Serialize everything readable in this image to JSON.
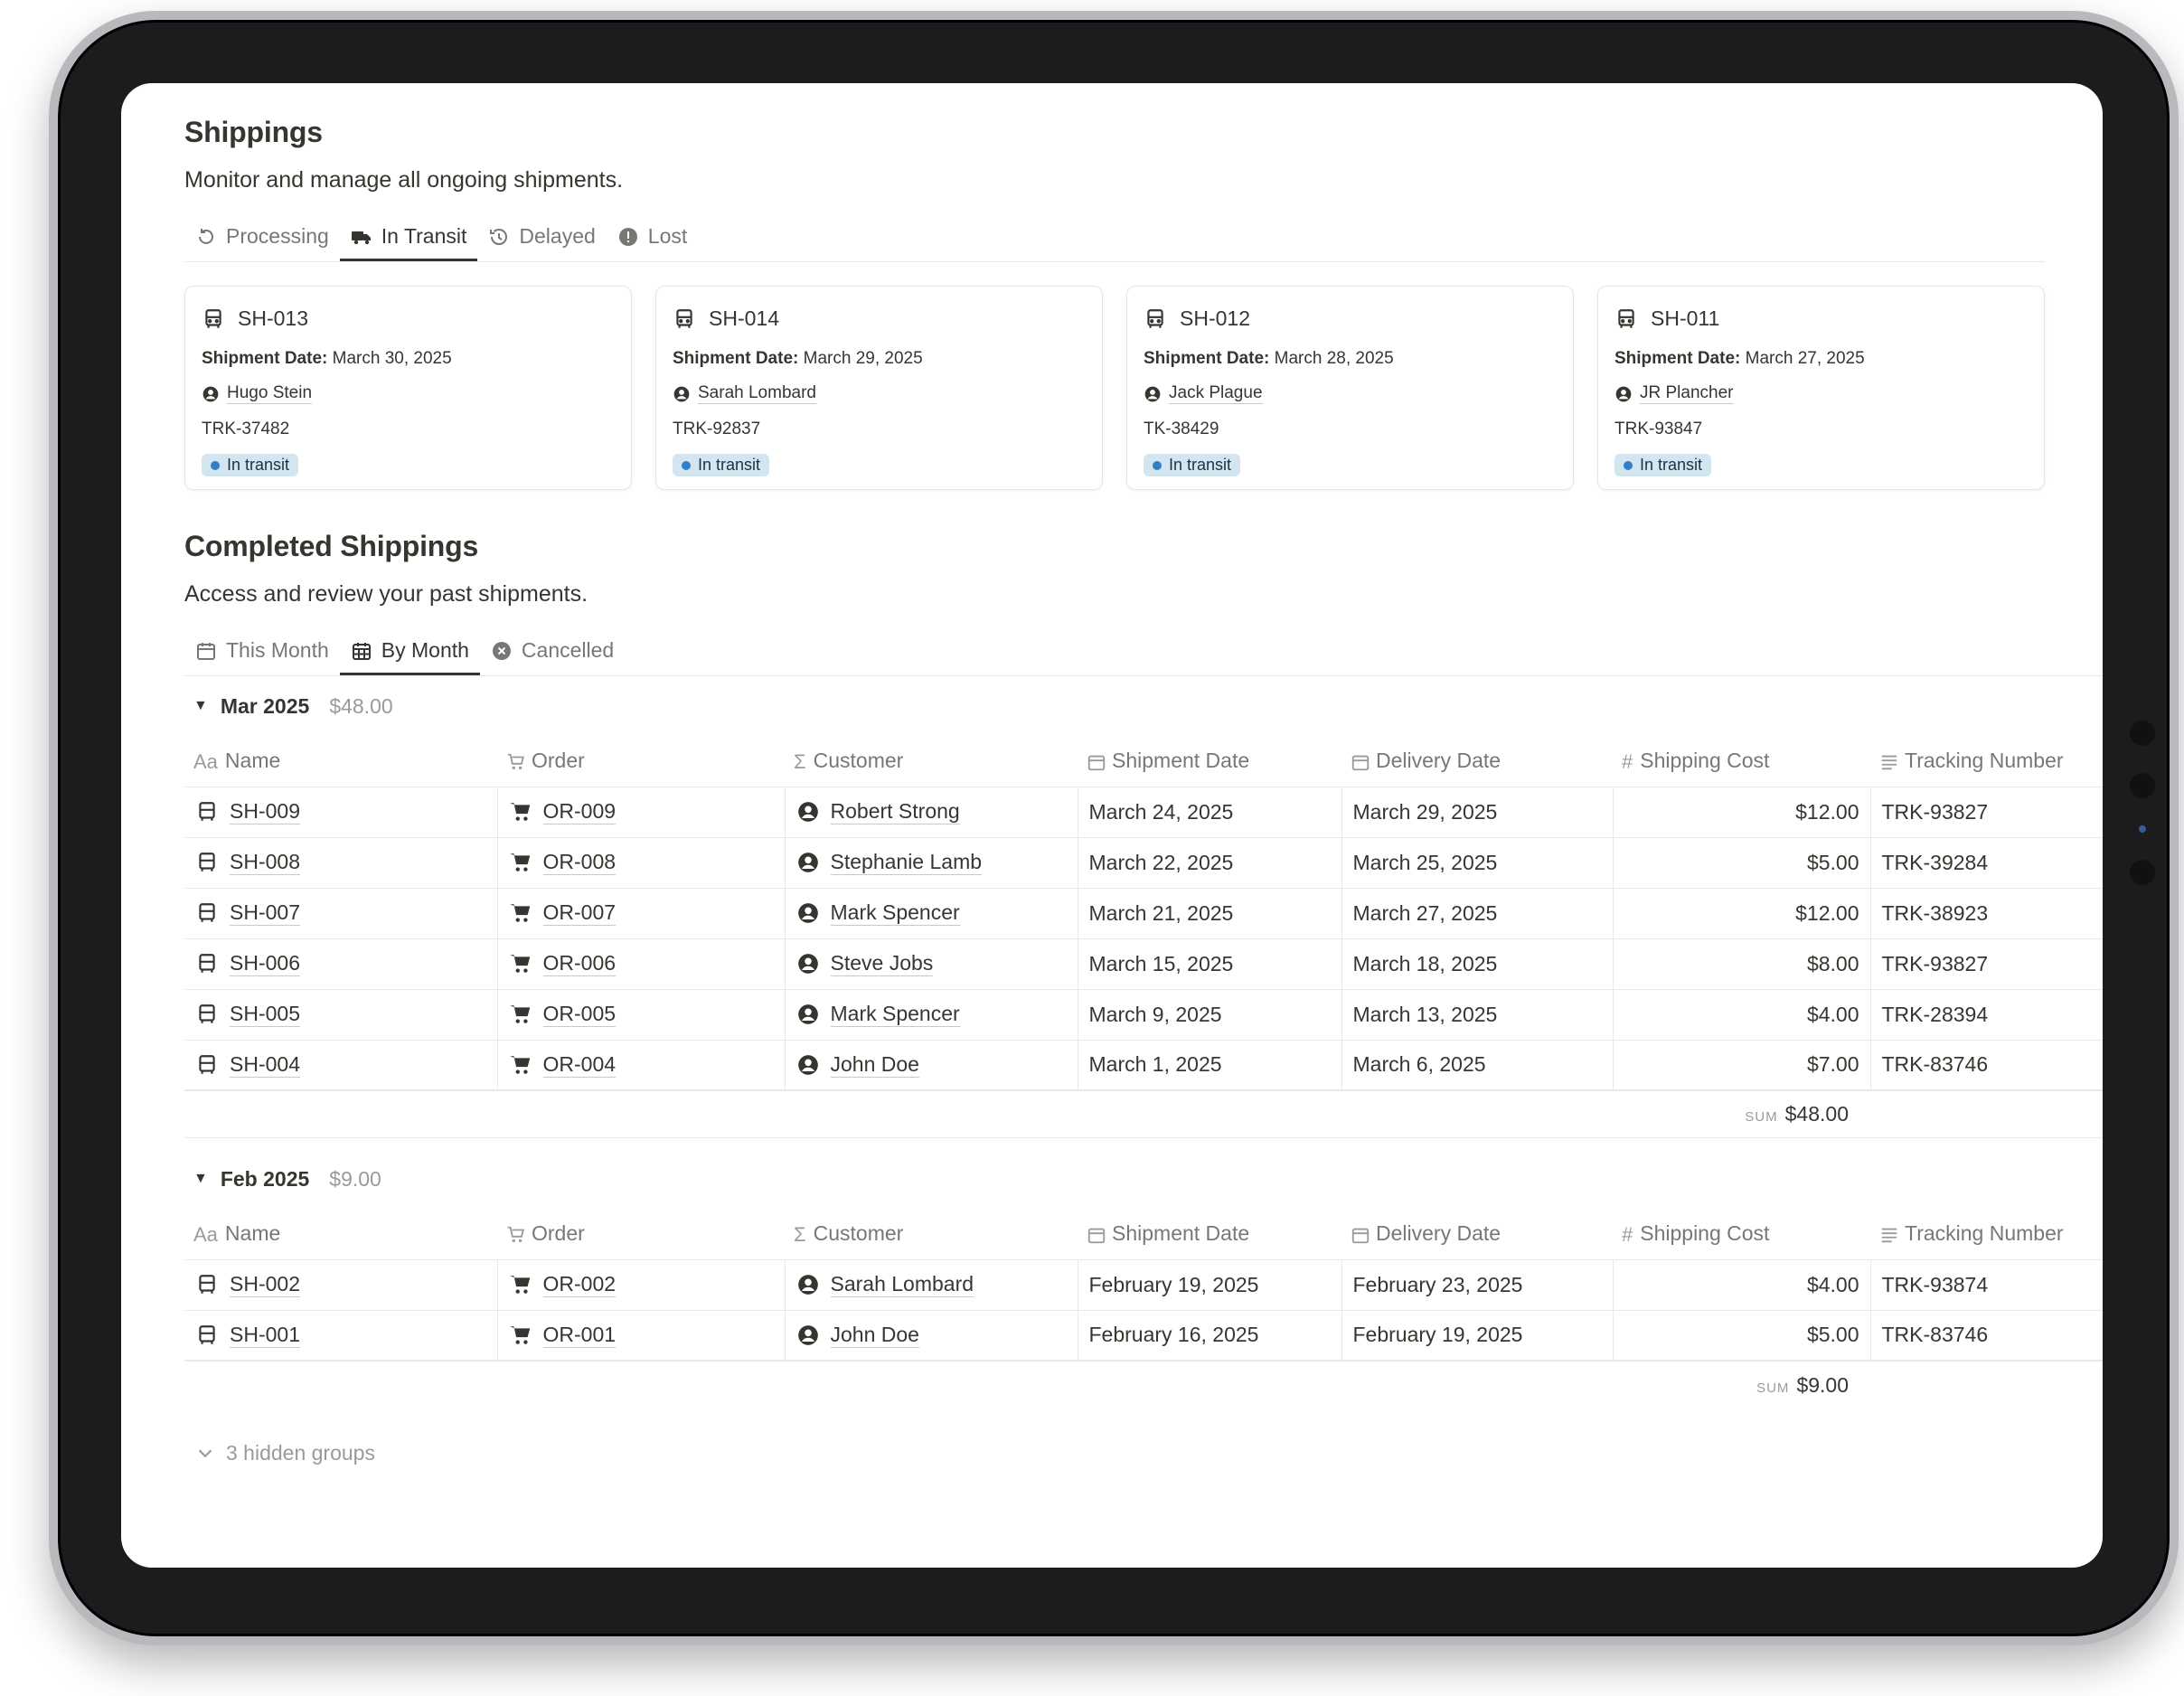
{
  "shippings": {
    "title": "Shippings",
    "description": "Monitor and manage all ongoing shipments.",
    "tabs": [
      {
        "label": "Processing",
        "icon": "rotate-icon"
      },
      {
        "label": "In Transit",
        "icon": "truck-icon"
      },
      {
        "label": "Delayed",
        "icon": "history-icon"
      },
      {
        "label": "Lost",
        "icon": "alert-icon"
      }
    ],
    "active_tab": "In Transit",
    "cards": [
      {
        "id": "SH-013",
        "date_label": "Shipment Date:",
        "date": "March 30, 2025",
        "customer": "Hugo Stein",
        "tracking": "TRK-37482",
        "status": "In transit"
      },
      {
        "id": "SH-014",
        "date_label": "Shipment Date:",
        "date": "March 29, 2025",
        "customer": "Sarah Lombard",
        "tracking": "TRK-92837",
        "status": "In transit"
      },
      {
        "id": "SH-012",
        "date_label": "Shipment Date:",
        "date": "March 28, 2025",
        "customer": "Jack Plague",
        "tracking": "TK-38429",
        "status": "In transit"
      },
      {
        "id": "SH-011",
        "date_label": "Shipment Date:",
        "date": "March 27, 2025",
        "customer": "JR Plancher",
        "tracking": "TRK-93847",
        "status": "In transit"
      }
    ]
  },
  "completed": {
    "title": "Completed Shippings",
    "description": "Access and review your past shipments.",
    "tabs": [
      {
        "label": "This Month",
        "icon": "calendar-icon"
      },
      {
        "label": "By Month",
        "icon": "calendar-grid-icon"
      },
      {
        "label": "Cancelled",
        "icon": "x-circle-icon"
      }
    ],
    "active_tab": "By Month",
    "columns": {
      "name": {
        "icon_text": "Aa",
        "label": "Name"
      },
      "order": {
        "label": "Order"
      },
      "customer": {
        "icon_text": "Σ",
        "label": "Customer"
      },
      "shipment_date": {
        "label": "Shipment Date"
      },
      "delivery_date": {
        "label": "Delivery Date"
      },
      "shipping_cost": {
        "icon_text": "#",
        "label": "Shipping Cost"
      },
      "tracking_number": {
        "label": "Tracking Number"
      }
    },
    "sum_label": "SUM",
    "groups": [
      {
        "name": "Mar 2025",
        "total": "$48.00",
        "rows": [
          {
            "name": "SH-009",
            "order": "OR-009",
            "customer": "Robert Strong",
            "shipment_date": "March 24, 2025",
            "delivery_date": "March 29, 2025",
            "cost": "$12.00",
            "tracking": "TRK-93827"
          },
          {
            "name": "SH-008",
            "order": "OR-008",
            "customer": "Stephanie Lamb",
            "shipment_date": "March 22, 2025",
            "delivery_date": "March 25, 2025",
            "cost": "$5.00",
            "tracking": "TRK-39284"
          },
          {
            "name": "SH-007",
            "order": "OR-007",
            "customer": "Mark Spencer",
            "shipment_date": "March 21, 2025",
            "delivery_date": "March 27, 2025",
            "cost": "$12.00",
            "tracking": "TRK-38923"
          },
          {
            "name": "SH-006",
            "order": "OR-006",
            "customer": "Steve Jobs",
            "shipment_date": "March 15, 2025",
            "delivery_date": "March 18, 2025",
            "cost": "$8.00",
            "tracking": "TRK-93827"
          },
          {
            "name": "SH-005",
            "order": "OR-005",
            "customer": "Mark Spencer",
            "shipment_date": "March 9, 2025",
            "delivery_date": "March 13, 2025",
            "cost": "$4.00",
            "tracking": "TRK-28394"
          },
          {
            "name": "SH-004",
            "order": "OR-004",
            "customer": "John Doe",
            "shipment_date": "March 1, 2025",
            "delivery_date": "March 6, 2025",
            "cost": "$7.00",
            "tracking": "TRK-83746"
          }
        ],
        "sum": "$48.00"
      },
      {
        "name": "Feb 2025",
        "total": "$9.00",
        "rows": [
          {
            "name": "SH-002",
            "order": "OR-002",
            "customer": "Sarah Lombard",
            "shipment_date": "February 19, 2025",
            "delivery_date": "February 23, 2025",
            "cost": "$4.00",
            "tracking": "TRK-93874"
          },
          {
            "name": "SH-001",
            "order": "OR-001",
            "customer": "John Doe",
            "shipment_date": "February 16, 2025",
            "delivery_date": "February 19, 2025",
            "cost": "$5.00",
            "tracking": "TRK-83746"
          }
        ],
        "sum": "$9.00"
      }
    ],
    "hidden_groups": "3 hidden groups"
  }
}
